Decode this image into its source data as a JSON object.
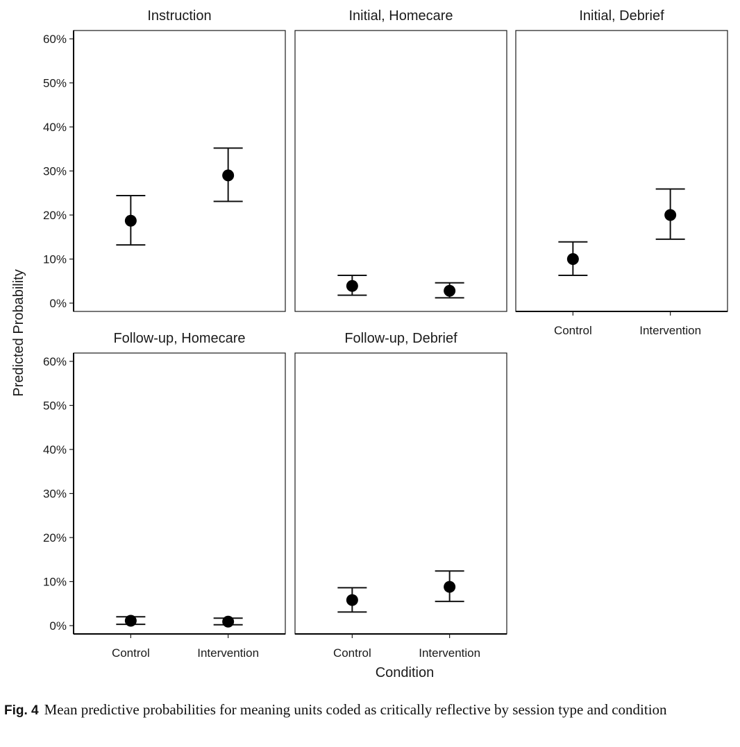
{
  "chart_data": {
    "type": "scatter",
    "subtype": "point-with-error-bars, faceted",
    "ylabel": "Predicted Probability",
    "xlabel": "Condition",
    "ylim": [
      0,
      0.6
    ],
    "yticks": [
      0,
      0.1,
      0.2,
      0.3,
      0.4,
      0.5,
      0.6
    ],
    "ytick_labels": [
      "0%",
      "10%",
      "20%",
      "30%",
      "40%",
      "50%",
      "60%"
    ],
    "categories": [
      "Control",
      "Intervention"
    ],
    "grid": false,
    "panels": [
      {
        "title": "Instruction",
        "points": [
          {
            "category": "Control",
            "estimate": 0.187,
            "lower": 0.132,
            "upper": 0.244
          },
          {
            "category": "Intervention",
            "estimate": 0.29,
            "lower": 0.231,
            "upper": 0.352
          }
        ]
      },
      {
        "title": "Initial, Homecare",
        "points": [
          {
            "category": "Control",
            "estimate": 0.039,
            "lower": 0.018,
            "upper": 0.063
          },
          {
            "category": "Intervention",
            "estimate": 0.028,
            "lower": 0.012,
            "upper": 0.046
          }
        ]
      },
      {
        "title": "Initial, Debrief",
        "points": [
          {
            "category": "Control",
            "estimate": 0.1,
            "lower": 0.063,
            "upper": 0.139
          },
          {
            "category": "Intervention",
            "estimate": 0.2,
            "lower": 0.145,
            "upper": 0.259
          }
        ]
      },
      {
        "title": "Follow-up, Homecare",
        "points": [
          {
            "category": "Control",
            "estimate": 0.011,
            "lower": 0.003,
            "upper": 0.02
          },
          {
            "category": "Intervention",
            "estimate": 0.009,
            "lower": 0.002,
            "upper": 0.017
          }
        ]
      },
      {
        "title": "Follow-up, Debrief",
        "points": [
          {
            "category": "Control",
            "estimate": 0.058,
            "lower": 0.031,
            "upper": 0.086
          },
          {
            "category": "Intervention",
            "estimate": 0.088,
            "lower": 0.055,
            "upper": 0.124
          }
        ]
      }
    ]
  },
  "caption": {
    "label": "Fig. 4",
    "text": "Mean predictive probabilities for meaning units coded as critically reflective by session type and condition"
  }
}
